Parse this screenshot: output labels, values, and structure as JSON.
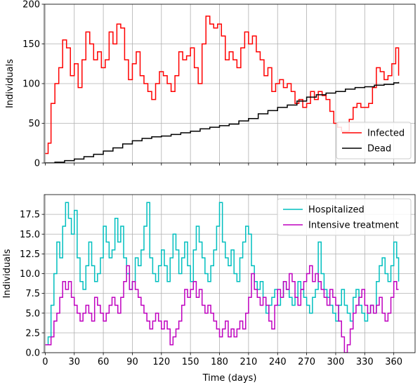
{
  "chart_data": [
    {
      "type": "line",
      "xlabel": "",
      "ylabel": "Individuals",
      "xlim": [
        -1,
        382
      ],
      "ylim": [
        0,
        200
      ],
      "xticks": [
        0,
        30,
        60,
        90,
        120,
        150,
        180,
        210,
        240,
        270,
        300,
        330,
        360
      ],
      "yticks": [
        0,
        50,
        100,
        150,
        200
      ],
      "ytick_labels": [
        "0",
        "50",
        "100",
        "150",
        "200"
      ],
      "show_xtick_labels": false,
      "grid": true,
      "legend_position": "lower-right",
      "series": [
        {
          "name": "Infected",
          "color": "#ff0000",
          "x": [
            0,
            3,
            6,
            10,
            14,
            18,
            22,
            26,
            30,
            34,
            38,
            42,
            46,
            50,
            54,
            58,
            62,
            66,
            70,
            74,
            78,
            82,
            86,
            90,
            94,
            98,
            102,
            106,
            110,
            114,
            118,
            122,
            126,
            130,
            134,
            138,
            142,
            146,
            150,
            154,
            158,
            162,
            166,
            170,
            174,
            178,
            182,
            186,
            190,
            194,
            198,
            202,
            206,
            210,
            214,
            218,
            222,
            226,
            230,
            234,
            238,
            242,
            246,
            250,
            254,
            258,
            262,
            266,
            270,
            274,
            278,
            282,
            286,
            290,
            294,
            298,
            302,
            306,
            310,
            314,
            318,
            322,
            326,
            330,
            334,
            338,
            342,
            346,
            350,
            354,
            358,
            362,
            365
          ],
          "y": [
            12,
            25,
            75,
            100,
            120,
            155,
            145,
            110,
            125,
            95,
            130,
            165,
            150,
            130,
            140,
            120,
            130,
            165,
            150,
            175,
            170,
            130,
            105,
            125,
            140,
            110,
            100,
            90,
            80,
            100,
            115,
            110,
            100,
            90,
            110,
            140,
            130,
            135,
            145,
            120,
            100,
            150,
            185,
            175,
            170,
            175,
            160,
            130,
            140,
            130,
            120,
            145,
            165,
            150,
            160,
            140,
            130,
            110,
            120,
            90,
            100,
            105,
            95,
            100,
            90,
            75,
            80,
            70,
            75,
            90,
            80,
            90,
            85,
            80,
            65,
            50,
            45,
            40,
            40,
            55,
            70,
            75,
            70,
            70,
            75,
            95,
            120,
            115,
            105,
            110,
            125,
            145,
            110
          ]
        },
        {
          "name": "Dead",
          "color": "#000000",
          "x": [
            0,
            10,
            20,
            30,
            40,
            50,
            60,
            70,
            80,
            90,
            100,
            110,
            120,
            130,
            140,
            150,
            160,
            170,
            180,
            190,
            200,
            210,
            220,
            230,
            240,
            250,
            260,
            270,
            280,
            290,
            300,
            310,
            320,
            330,
            340,
            350,
            360,
            365
          ],
          "y": [
            0,
            1,
            3,
            5,
            8,
            11,
            15,
            19,
            24,
            28,
            31,
            33,
            34,
            36,
            38,
            40,
            43,
            45,
            47,
            49,
            53,
            56,
            62,
            66,
            70,
            73,
            78,
            83,
            86,
            88,
            90,
            93,
            95,
            96,
            98,
            99,
            101,
            102
          ]
        }
      ]
    },
    {
      "type": "line",
      "xlabel": "Time (days)",
      "ylabel": "Individuals",
      "xlim": [
        -1,
        382
      ],
      "ylim": [
        0,
        20
      ],
      "xticks": [
        0,
        30,
        60,
        90,
        120,
        150,
        180,
        210,
        240,
        270,
        300,
        330,
        360
      ],
      "xtick_labels": [
        "0",
        "30",
        "60",
        "90",
        "120",
        "150",
        "180",
        "210",
        "240",
        "270",
        "300",
        "330",
        "360"
      ],
      "yticks": [
        0,
        2.5,
        5,
        7.5,
        10,
        12.5,
        15,
        17.5
      ],
      "ytick_labels": [
        "0.0",
        "2.5",
        "5.0",
        "7.5",
        "10.0",
        "12.5",
        "15.0",
        "17.5"
      ],
      "grid": true,
      "legend_position": "upper-right",
      "series": [
        {
          "name": "Hospitalized",
          "color": "#00bfbf",
          "x": [
            0,
            3,
            6,
            9,
            12,
            15,
            18,
            21,
            24,
            27,
            30,
            33,
            36,
            39,
            42,
            45,
            48,
            51,
            54,
            57,
            60,
            63,
            66,
            69,
            72,
            75,
            78,
            81,
            84,
            87,
            90,
            93,
            96,
            99,
            102,
            105,
            108,
            111,
            114,
            117,
            120,
            123,
            126,
            129,
            132,
            135,
            138,
            141,
            144,
            147,
            150,
            153,
            156,
            159,
            162,
            165,
            168,
            171,
            174,
            177,
            180,
            183,
            186,
            189,
            192,
            195,
            198,
            201,
            204,
            207,
            210,
            213,
            216,
            219,
            222,
            225,
            228,
            231,
            234,
            237,
            240,
            243,
            246,
            249,
            252,
            255,
            258,
            261,
            264,
            267,
            270,
            273,
            276,
            279,
            282,
            285,
            288,
            291,
            294,
            297,
            300,
            303,
            306,
            309,
            312,
            315,
            318,
            321,
            324,
            327,
            330,
            333,
            336,
            339,
            342,
            345,
            348,
            351,
            354,
            357,
            360,
            363,
            365
          ],
          "y": [
            1,
            2,
            6,
            10,
            14,
            12,
            16,
            19,
            17,
            15,
            18,
            12,
            9,
            8,
            11,
            14,
            11,
            9,
            10,
            12,
            16,
            14,
            12,
            13,
            17,
            14,
            16,
            12,
            10,
            8,
            9,
            12,
            11,
            13,
            16,
            19,
            12,
            10,
            9,
            11,
            13,
            11,
            9,
            12,
            15,
            13,
            10,
            12,
            14,
            11,
            9,
            13,
            16,
            14,
            12,
            10,
            9,
            11,
            13,
            16,
            19,
            14,
            12,
            11,
            13,
            10,
            9,
            12,
            14,
            16,
            15,
            11,
            9,
            8,
            9,
            7,
            5,
            6,
            7,
            8,
            6,
            7,
            9,
            8,
            7,
            6,
            7,
            9,
            8,
            7,
            6,
            5,
            7,
            8,
            14,
            10,
            8,
            7,
            6,
            5,
            4,
            6,
            8,
            6,
            5,
            4,
            7,
            8,
            6,
            5,
            4,
            5,
            6,
            5,
            9,
            11,
            12,
            10,
            9,
            11,
            14,
            12,
            9
          ]
        },
        {
          "name": "Intensive treatment",
          "color": "#bf00bf",
          "x": [
            0,
            3,
            6,
            9,
            12,
            15,
            18,
            21,
            24,
            27,
            30,
            33,
            36,
            39,
            42,
            45,
            48,
            51,
            54,
            57,
            60,
            63,
            66,
            69,
            72,
            75,
            78,
            81,
            84,
            87,
            90,
            93,
            96,
            99,
            102,
            105,
            108,
            111,
            114,
            117,
            120,
            123,
            126,
            129,
            132,
            135,
            138,
            141,
            144,
            147,
            150,
            153,
            156,
            159,
            162,
            165,
            168,
            171,
            174,
            177,
            180,
            183,
            186,
            189,
            192,
            195,
            198,
            201,
            204,
            207,
            210,
            213,
            216,
            219,
            222,
            225,
            228,
            231,
            234,
            237,
            240,
            243,
            246,
            249,
            252,
            255,
            258,
            261,
            264,
            267,
            270,
            273,
            276,
            279,
            282,
            285,
            288,
            291,
            294,
            297,
            300,
            303,
            306,
            309,
            312,
            315,
            318,
            321,
            324,
            327,
            330,
            333,
            336,
            339,
            342,
            345,
            348,
            351,
            354,
            357,
            360,
            363,
            365
          ],
          "y": [
            1,
            1,
            2,
            4,
            5,
            7,
            9,
            8,
            9,
            7,
            6,
            5,
            4,
            5,
            6,
            5,
            4,
            7,
            6,
            5,
            4,
            5,
            6,
            7,
            6,
            5,
            7,
            9,
            11,
            8,
            9,
            8,
            7,
            6,
            5,
            4,
            3,
            4,
            5,
            4,
            3,
            4,
            3,
            1,
            2,
            3,
            4,
            6,
            8,
            7,
            8,
            9,
            7,
            8,
            6,
            5,
            6,
            5,
            4,
            3,
            2,
            3,
            4,
            2,
            3,
            2,
            3,
            4,
            3,
            5,
            7,
            10,
            8,
            7,
            6,
            7,
            6,
            4,
            3,
            6,
            8,
            7,
            9,
            8,
            10,
            9,
            7,
            6,
            8,
            9,
            10,
            11,
            9,
            10,
            9,
            8,
            7,
            6,
            8,
            7,
            6,
            4,
            2,
            0,
            1,
            3,
            5,
            6,
            7,
            8,
            6,
            5,
            6,
            5,
            6,
            7,
            5,
            4,
            5,
            7,
            9,
            8,
            8
          ]
        }
      ]
    }
  ]
}
